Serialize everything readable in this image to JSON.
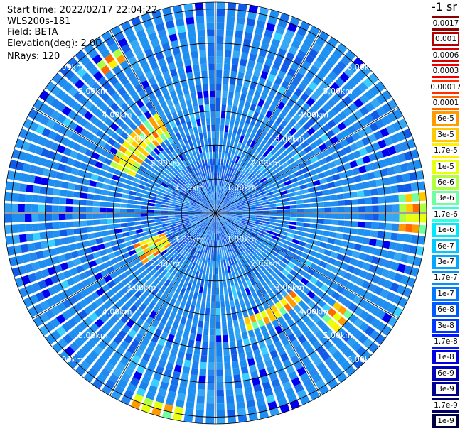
{
  "info": {
    "start_time": "Start time: 2022/02/17 22:04:22",
    "instrument": "WLS200s-181",
    "field": "Field: BETA",
    "elevation": "Elevation(deg): 2.00",
    "nrays": "NRays: 120"
  },
  "colorbar": {
    "title": "-1 sr",
    "labels": [
      "0.0017",
      "0.001",
      "0.0006",
      "0.0003",
      "0.00017",
      "0.0001",
      "6e-5",
      "3e-5",
      "1.7e-5",
      "1e-5",
      "6e-6",
      "3e-6",
      "1.7e-6",
      "1e-6",
      "6e-7",
      "3e-7",
      "1.7e-7",
      "1e-7",
      "6e-8",
      "3e-8",
      "1.7e-8",
      "1e-8",
      "6e-9",
      "3e-9",
      "1.7e-9",
      "1e-9"
    ],
    "colors": [
      "#8b0000",
      "#b00000",
      "#d40000",
      "#f00000",
      "#ff3000",
      "#ff6a00",
      "#ff9a00",
      "#ffc800",
      "#fff000",
      "#e8ff10",
      "#b0ff40",
      "#70ffa0",
      "#30ffe0",
      "#00e8ff",
      "#00c8ff",
      "#00a8ff",
      "#0090ff",
      "#0078ff",
      "#0058ff",
      "#0038ff",
      "#0018ff",
      "#0000e0",
      "#0000b8",
      "#000090",
      "#000068",
      "#000040"
    ]
  },
  "chart_data": {
    "type": "heatmap",
    "projection": "polar PPI",
    "field": "BETA",
    "units": "-1 sr",
    "nrays": 120,
    "ring_labels": [
      "1.00km",
      "2.00km",
      "3.00km",
      "4.00km",
      "5.00km",
      "6.00km"
    ],
    "ring_distances_km": [
      1,
      2,
      3,
      4,
      5,
      6
    ],
    "max_range_km": 6.2,
    "background_color": "#1e8ef0",
    "features": [
      {
        "azimuth_deg": [
          295,
          330
        ],
        "range_km": [
          2.6,
          3.4
        ],
        "level": "6e-6 to 6e-5",
        "description": "arc of elevated backscatter"
      },
      {
        "azimuth_deg": [
          235,
          250
        ],
        "range_km": [
          1.6,
          2.6
        ],
        "level": "3e-6 to 6e-5"
      },
      {
        "azimuth_deg": [
          135,
          165
        ],
        "range_km": [
          3.2,
          3.6
        ],
        "level": "3e-6 to 1e-4"
      },
      {
        "azimuth_deg": [
          125,
          135
        ],
        "range_km": [
          4.4,
          4.9
        ],
        "level": "3e-6 to 6e-5"
      },
      {
        "azimuth_deg": [
          190,
          205
        ],
        "range_km": [
          5.8,
          6.1
        ],
        "level": "3e-6 to 6e-5"
      },
      {
        "azimuth_deg": [
          322,
          330
        ],
        "range_km": [
          5.3,
          5.7
        ],
        "level": "1e-5 to 6e-5"
      },
      {
        "azimuth_deg": [
          85,
          95
        ],
        "range_km": [
          5.4,
          6.1
        ],
        "level": "1e-6 to 6e-6"
      }
    ]
  }
}
